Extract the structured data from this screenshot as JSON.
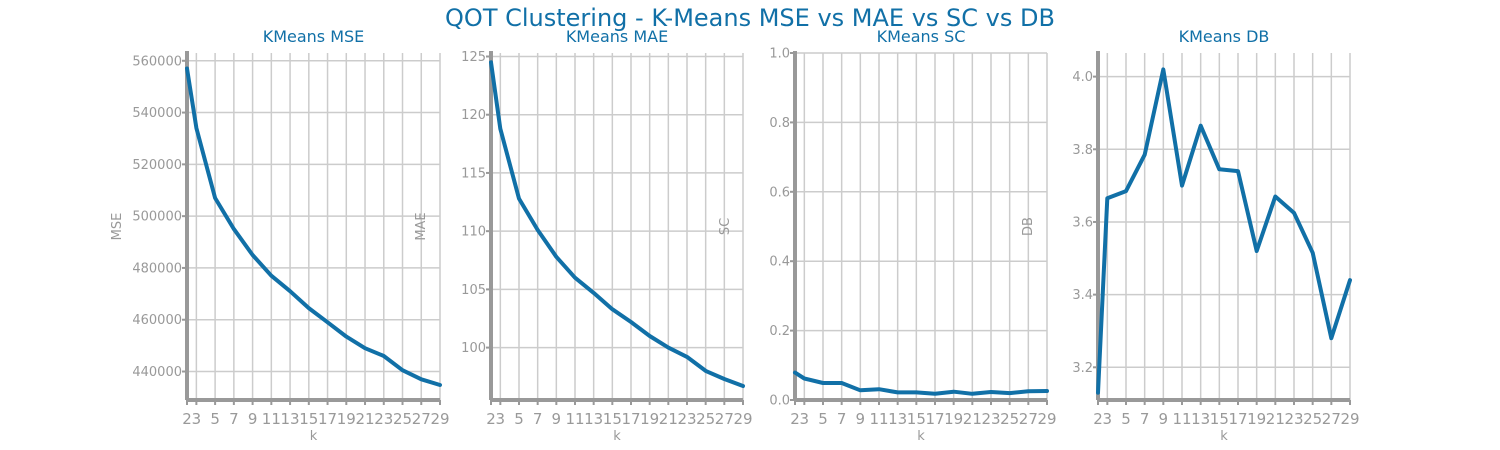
{
  "figure": {
    "title": "QOT Clustering - K-Means MSE vs MAE vs SC vs DB",
    "line_color": "#1170a7",
    "title_color": "#1170a7",
    "axis_color": "#999999",
    "grid_color": "#cccccc"
  },
  "chart_data": [
    {
      "type": "line",
      "title": "KMeans MSE",
      "xlabel": "k",
      "ylabel": "MSE",
      "x": [
        2,
        3,
        5,
        7,
        9,
        11,
        13,
        15,
        17,
        19,
        21,
        23,
        25,
        27,
        29
      ],
      "xticks": [
        "2",
        "3",
        "5",
        "7",
        "9",
        "11",
        "13",
        "15",
        "17",
        "19",
        "21",
        "23",
        "25",
        "27",
        "29"
      ],
      "yticks": [
        "440000",
        "460000",
        "480000",
        "500000",
        "520000",
        "540000",
        "560000"
      ],
      "ytick_values": [
        440000,
        460000,
        480000,
        500000,
        520000,
        540000,
        560000
      ],
      "ylim": [
        429000,
        563000
      ],
      "grid": true,
      "series": [
        {
          "values": [
            557000,
            534000,
            507000,
            495000,
            485000,
            477000,
            471000,
            464500,
            459000,
            453500,
            449000,
            446000,
            440500,
            437000,
            434800
          ]
        }
      ]
    },
    {
      "type": "line",
      "title": "KMeans MAE",
      "xlabel": "k",
      "ylabel": "MAE",
      "x": [
        2,
        3,
        5,
        7,
        9,
        11,
        13,
        15,
        17,
        19,
        21,
        23,
        25,
        27,
        29
      ],
      "xticks": [
        "2",
        "3",
        "5",
        "7",
        "9",
        "11",
        "13",
        "15",
        "17",
        "19",
        "21",
        "23",
        "25",
        "27",
        "29"
      ],
      "yticks": [
        "100",
        "105",
        "110",
        "115",
        "120",
        "125"
      ],
      "ytick_values": [
        100,
        105,
        110,
        115,
        120,
        125
      ],
      "ylim": [
        95.5,
        125.3
      ],
      "grid": true,
      "series": [
        {
          "values": [
            124.5,
            118.8,
            112.8,
            110.1,
            107.8,
            106.0,
            104.7,
            103.3,
            102.2,
            101.0,
            100.0,
            99.2,
            98.0,
            97.3,
            96.7
          ]
        }
      ]
    },
    {
      "type": "line",
      "title": "KMeans SC",
      "xlabel": "k",
      "ylabel": "SC",
      "x": [
        2,
        3,
        5,
        7,
        9,
        11,
        13,
        15,
        17,
        19,
        21,
        23,
        25,
        27,
        29
      ],
      "xticks": [
        "2",
        "3",
        "5",
        "7",
        "9",
        "11",
        "13",
        "15",
        "17",
        "19",
        "21",
        "23",
        "25",
        "27",
        "29"
      ],
      "yticks": [
        "0.0",
        "0.2",
        "0.4",
        "0.6",
        "0.8",
        "1.0"
      ],
      "ytick_values": [
        0,
        0.2,
        0.4,
        0.6,
        0.8,
        1.0
      ],
      "ylim": [
        0,
        1.0
      ],
      "grid": true,
      "series": [
        {
          "values": [
            0.079,
            0.062,
            0.049,
            0.049,
            0.028,
            0.031,
            0.022,
            0.022,
            0.018,
            0.024,
            0.018,
            0.023,
            0.02,
            0.025,
            0.026
          ]
        }
      ]
    },
    {
      "type": "line",
      "title": "KMeans DB",
      "xlabel": "k",
      "ylabel": "DB",
      "x": [
        2,
        3,
        5,
        7,
        9,
        11,
        13,
        15,
        17,
        19,
        21,
        23,
        25,
        27,
        29
      ],
      "xticks": [
        "2",
        "3",
        "5",
        "7",
        "9",
        "11",
        "13",
        "15",
        "17",
        "19",
        "21",
        "23",
        "25",
        "27",
        "29"
      ],
      "yticks": [
        "3.2",
        "3.4",
        "3.6",
        "3.8",
        "4.0"
      ],
      "ytick_values": [
        3.2,
        3.4,
        3.6,
        3.8,
        4.0
      ],
      "ylim": [
        3.11,
        4.065
      ],
      "grid": true,
      "series": [
        {
          "values": [
            3.13,
            3.665,
            3.685,
            3.785,
            4.02,
            3.7,
            3.865,
            3.745,
            3.74,
            3.52,
            3.67,
            3.625,
            3.515,
            3.28,
            3.44
          ]
        }
      ]
    }
  ]
}
